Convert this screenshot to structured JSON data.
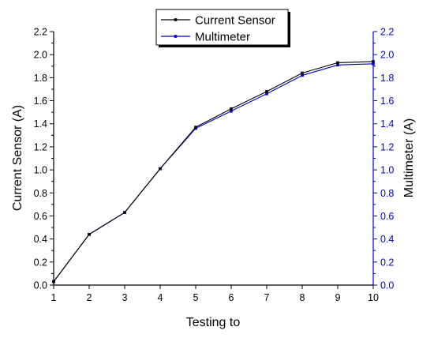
{
  "chart_data": {
    "type": "line",
    "x": [
      1,
      2,
      3,
      4,
      5,
      6,
      7,
      8,
      9,
      10
    ],
    "xlabel": "Testing to",
    "ylabel_left": "Current Sensor (A)",
    "ylabel_right": "Multimeter (A)",
    "xlim": [
      1,
      10
    ],
    "ylim": [
      0,
      2.2
    ],
    "xticks": [
      "1",
      "2",
      "3",
      "4",
      "5",
      "6",
      "7",
      "8",
      "9",
      "10"
    ],
    "yticks": [
      "0.0",
      "0.2",
      "0.4",
      "0.6",
      "0.8",
      "1.0",
      "1.2",
      "1.4",
      "1.6",
      "1.8",
      "2.0",
      "2.2"
    ],
    "grid": false,
    "legend_position": "top-center",
    "series": [
      {
        "name": "Current Sensor",
        "axis": "left",
        "color": "#000000",
        "values": [
          0.03,
          0.44,
          0.63,
          1.01,
          1.37,
          1.53,
          1.68,
          1.84,
          1.93,
          1.94
        ]
      },
      {
        "name": "Multimeter",
        "axis": "right",
        "color": "#0000cc",
        "values": [
          0.03,
          0.44,
          0.63,
          1.01,
          1.36,
          1.51,
          1.66,
          1.82,
          1.91,
          1.92
        ]
      }
    ],
    "colors": {
      "left_axis": "#000000",
      "right_axis": "#0000cc"
    }
  }
}
